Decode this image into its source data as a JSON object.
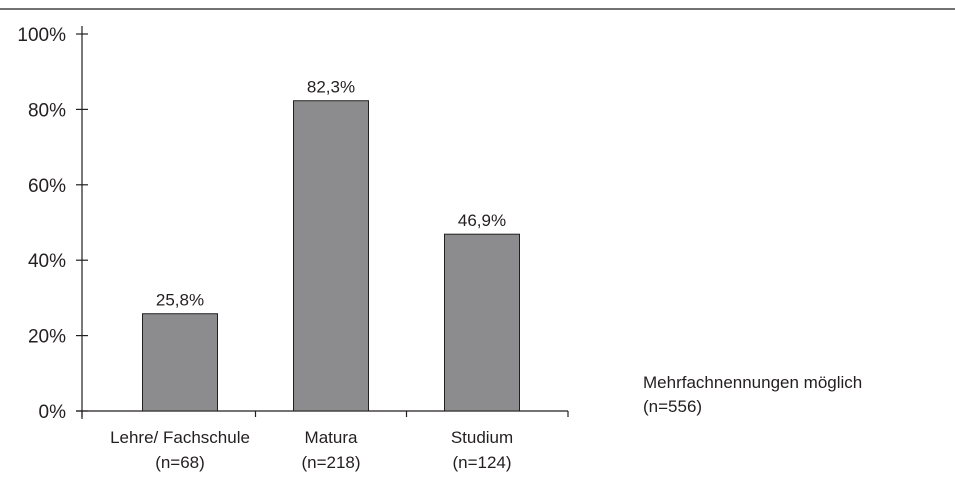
{
  "chart_data": {
    "type": "bar",
    "categories": [
      "Lehre/ Fachschule",
      "Matura",
      "Studium"
    ],
    "category_n": [
      "(n=68)",
      "(n=218)",
      "(n=124)"
    ],
    "values": [
      25.8,
      82.3,
      46.9
    ],
    "value_labels": [
      "25,8%",
      "82,3%",
      "46,9%"
    ],
    "ylim": [
      0,
      100
    ],
    "yticks": [
      0,
      20,
      40,
      60,
      80,
      100
    ],
    "ytick_labels": [
      "0%",
      "20%",
      "40%",
      "60%",
      "80%",
      "100%"
    ],
    "grid": false,
    "bar_color": "#8c8c8e",
    "note_line1": "Mehrfachnennungen möglich",
    "note_line2": "(n=556)"
  }
}
